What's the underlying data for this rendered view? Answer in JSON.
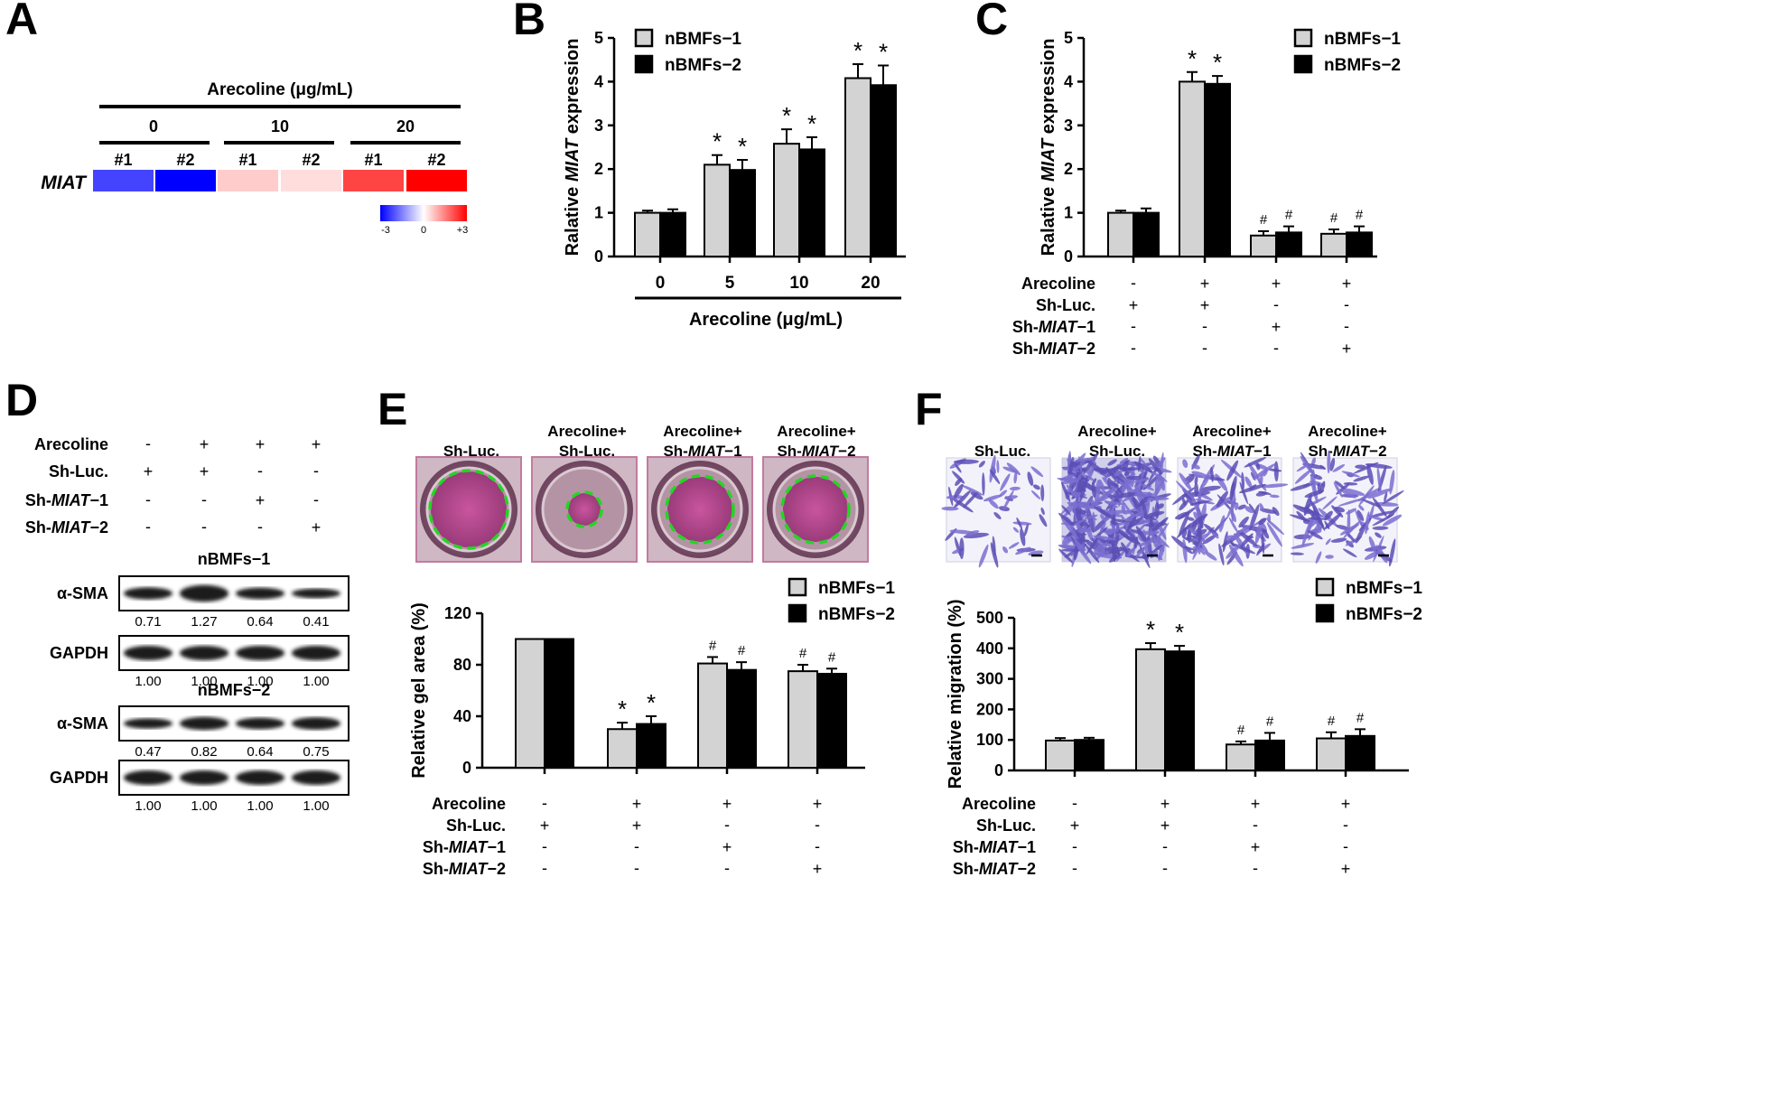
{
  "figure": {
    "panel_labels": [
      "A",
      "B",
      "C",
      "D",
      "E",
      "F"
    ],
    "legend": {
      "series1": "nBMFs−1",
      "series2": "nBMFs−2"
    },
    "colors": {
      "series1": "#d3d3d3",
      "series2": "#000000",
      "star": "*",
      "hash": "#"
    }
  },
  "panelA": {
    "header": "Arecoline (μg/mL)",
    "gene": "MIAT",
    "doses": [
      "0",
      "10",
      "20"
    ],
    "replicates": [
      "#1",
      "#2",
      "#1",
      "#2",
      "#1",
      "#2"
    ],
    "heat_values": [
      -2.2,
      -3.0,
      0.6,
      0.4,
      2.2,
      3.0
    ],
    "colorbar": {
      "min": "-3",
      "mid": "0",
      "max": "+3",
      "min_color": "#0000ff",
      "mid_color": "#ffffff",
      "max_color": "#ff0000"
    }
  },
  "chart_data": [
    {
      "id": "B",
      "type": "bar",
      "ylabel_parts": [
        "Ralative ",
        "MIAT",
        " expression"
      ],
      "xlabel": "Arecoline (μg/mL)",
      "categories": [
        "0",
        "5",
        "10",
        "20"
      ],
      "ylim": [
        0,
        5
      ],
      "yticks": [
        "0",
        "1",
        "2",
        "3",
        "4",
        "5"
      ],
      "series": [
        {
          "name": "nBMFs−1",
          "values": [
            1.0,
            2.1,
            2.58,
            4.08
          ],
          "errors": [
            0.05,
            0.22,
            0.33,
            0.32
          ],
          "marks": [
            "",
            "*",
            "*",
            "*"
          ]
        },
        {
          "name": "nBMFs−2",
          "values": [
            1.0,
            1.98,
            2.45,
            3.92
          ],
          "errors": [
            0.08,
            0.23,
            0.28,
            0.45
          ],
          "marks": [
            "",
            "*",
            "*",
            "*"
          ]
        }
      ]
    },
    {
      "id": "C",
      "type": "bar",
      "ylabel_parts": [
        "Ralative ",
        "MIAT",
        " expression"
      ],
      "categories": [
        "1",
        "2",
        "3",
        "4"
      ],
      "ylim": [
        0,
        5
      ],
      "yticks": [
        "0",
        "1",
        "2",
        "3",
        "4",
        "5"
      ],
      "series": [
        {
          "name": "nBMFs−1",
          "values": [
            1.0,
            4.0,
            0.48,
            0.52
          ],
          "errors": [
            0.05,
            0.22,
            0.1,
            0.1
          ],
          "marks": [
            "",
            "*",
            "#",
            "#"
          ]
        },
        {
          "name": "nBMFs−2",
          "values": [
            1.0,
            3.95,
            0.55,
            0.55
          ],
          "errors": [
            0.1,
            0.18,
            0.14,
            0.14
          ],
          "marks": [
            "",
            "*",
            "#",
            "#"
          ]
        }
      ]
    },
    {
      "id": "E",
      "type": "bar",
      "ylabel": "Relative gel area (%)",
      "categories": [
        "1",
        "2",
        "3",
        "4"
      ],
      "ylim": [
        0,
        120
      ],
      "yticks": [
        "0",
        "40",
        "80",
        "120"
      ],
      "series": [
        {
          "name": "nBMFs−1",
          "values": [
            100,
            30,
            81,
            75
          ],
          "errors": [
            0,
            5,
            5,
            5
          ],
          "marks": [
            "",
            "*",
            "#",
            "#"
          ]
        },
        {
          "name": "nBMFs−2",
          "values": [
            100,
            34,
            76,
            73
          ],
          "errors": [
            0,
            6,
            6,
            4
          ],
          "marks": [
            "",
            "*",
            "#",
            "#"
          ]
        }
      ]
    },
    {
      "id": "F",
      "type": "bar",
      "ylabel": "Relative migration (%)",
      "categories": [
        "1",
        "2",
        "3",
        "4"
      ],
      "ylim": [
        0,
        500
      ],
      "yticks": [
        "0",
        "100",
        "200",
        "300",
        "400",
        "500"
      ],
      "series": [
        {
          "name": "nBMFs−1",
          "values": [
            98,
            397,
            85,
            105
          ],
          "errors": [
            8,
            20,
            10,
            20
          ],
          "marks": [
            "",
            "*",
            "#",
            "#"
          ]
        },
        {
          "name": "nBMFs−2",
          "values": [
            100,
            390,
            98,
            113
          ],
          "errors": [
            7,
            18,
            25,
            22
          ],
          "marks": [
            "",
            "*",
            "#",
            "#"
          ]
        }
      ]
    }
  ],
  "treatment_table": {
    "rows": [
      {
        "label_parts": [
          "Arecoline"
        ],
        "signs": [
          "-",
          "+",
          "+",
          "+"
        ]
      },
      {
        "label_parts": [
          "Sh-Luc."
        ],
        "signs": [
          "+",
          "+",
          "-",
          "-"
        ]
      },
      {
        "label_parts": [
          "Sh-",
          "MIAT",
          "−1"
        ],
        "signs": [
          "-",
          "-",
          "+",
          "-"
        ]
      },
      {
        "label_parts": [
          "Sh-",
          "MIAT",
          "−2"
        ],
        "signs": [
          "-",
          "-",
          "-",
          "+"
        ]
      }
    ]
  },
  "panelD": {
    "blot_groups": [
      {
        "title": "nBMFs−1",
        "rows": [
          {
            "label": "α-SMA",
            "band_intensity": [
              0.71,
              1.27,
              0.64,
              0.41
            ],
            "quant": [
              "0.71",
              "1.27",
              "0.64",
              "0.41"
            ]
          },
          {
            "label": "GAPDH",
            "band_intensity": [
              1,
              1,
              1,
              1
            ],
            "quant": [
              "1.00",
              "1.00",
              "1.00",
              "1.00"
            ]
          }
        ]
      },
      {
        "title": "nBMFs−2",
        "rows": [
          {
            "label": "α-SMA",
            "band_intensity": [
              0.47,
              0.82,
              0.64,
              0.75
            ],
            "quant": [
              "0.47",
              "0.82",
              "0.64",
              "0.75"
            ]
          },
          {
            "label": "GAPDH",
            "band_intensity": [
              1,
              1,
              1,
              1
            ],
            "quant": [
              "1.00",
              "1.00",
              "1.00",
              "1.00"
            ]
          }
        ]
      }
    ]
  },
  "image_labels": [
    [
      "Sh-Luc."
    ],
    [
      "Arecoline+",
      "Sh-Luc."
    ],
    [
      "Arecoline+",
      "Sh-|MIAT|−1"
    ],
    [
      "Arecoline+",
      "Sh-|MIAT|−2"
    ]
  ]
}
